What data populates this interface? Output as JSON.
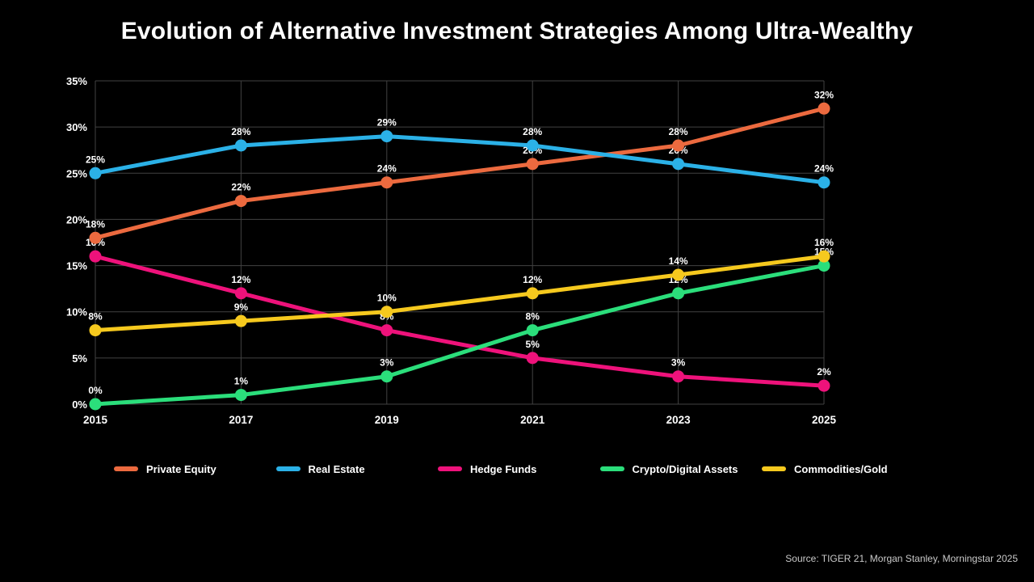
{
  "title": "Evolution of Alternative Investment Strategies Among Ultra-Wealthy",
  "source": "Source: TIGER 21, Morgan Stanley, Morningstar 2025",
  "chart_data": {
    "type": "line",
    "title": "Evolution of Alternative Investment Strategies Among Ultra-Wealthy",
    "x": [
      "2015",
      "2017",
      "2019",
      "2021",
      "2023",
      "2025"
    ],
    "series": [
      {
        "name": "Private Equity",
        "color": "#EC6A3F",
        "values": [
          18,
          22,
          24,
          26,
          28,
          32
        ]
      },
      {
        "name": "Real Estate",
        "color": "#2BB1E7",
        "values": [
          25,
          28,
          29,
          28,
          26,
          24
        ]
      },
      {
        "name": "Hedge Funds",
        "color": "#EE127B",
        "values": [
          16,
          12,
          8,
          5,
          3,
          2
        ]
      },
      {
        "name": "Crypto/Digital Assets",
        "color": "#2BDE7B",
        "values": [
          0,
          1,
          3,
          8,
          12,
          15
        ]
      },
      {
        "name": "Commodities/Gold",
        "color": "#F6C91E",
        "values": [
          8,
          9,
          10,
          12,
          14,
          16
        ]
      }
    ],
    "ylim": [
      0,
      35
    ],
    "yticks": [
      0,
      5,
      10,
      15,
      20,
      25,
      30,
      35
    ],
    "ytick_suffix": "%",
    "data_label_suffix": "%",
    "xlabel": "",
    "ylabel": "",
    "grid": true,
    "grid_color": "#424242",
    "background": "#000000",
    "text_color": "#FFFFFF",
    "legend_position": "bottom"
  }
}
